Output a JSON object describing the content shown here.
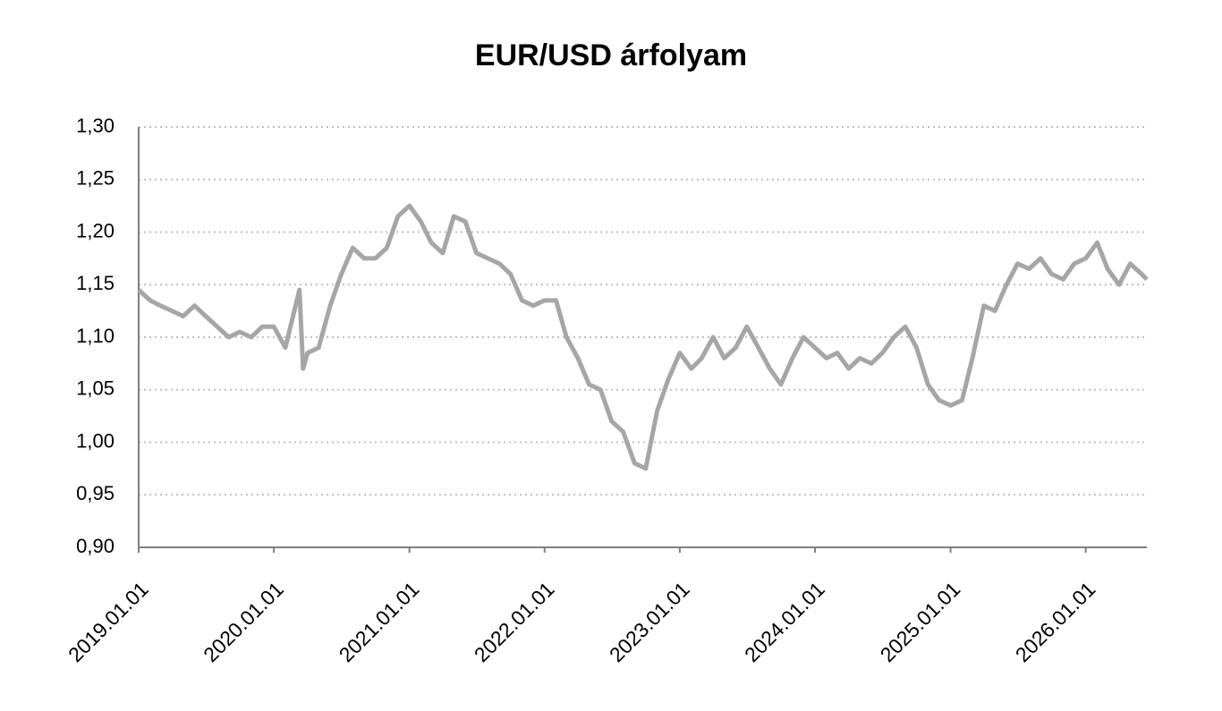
{
  "chart_data": {
    "type": "line",
    "title": "EUR/USD árfolyam",
    "x": [
      "2019.01.01",
      "2019.02.01",
      "2019.03.01",
      "2019.04.01",
      "2019.05.01",
      "2019.06.01",
      "2019.07.01",
      "2019.08.01",
      "2019.09.01",
      "2019.10.01",
      "2019.11.01",
      "2019.12.01",
      "2020.01.01",
      "2020.02.01",
      "2020.03.10",
      "2020.03.20",
      "2020.04.01",
      "2020.05.01",
      "2020.06.01",
      "2020.07.01",
      "2020.08.01",
      "2020.09.01",
      "2020.10.01",
      "2020.11.01",
      "2020.12.01",
      "2021.01.01",
      "2021.02.01",
      "2021.03.01",
      "2021.04.01",
      "2021.05.01",
      "2021.06.01",
      "2021.07.01",
      "2021.08.01",
      "2021.09.01",
      "2021.10.01",
      "2021.11.01",
      "2021.12.01",
      "2022.01.01",
      "2022.02.01",
      "2022.03.01",
      "2022.04.01",
      "2022.05.01",
      "2022.06.01",
      "2022.07.01",
      "2022.08.01",
      "2022.09.01",
      "2022.10.01",
      "2022.11.01",
      "2022.12.01",
      "2023.01.01",
      "2023.02.01",
      "2023.03.01",
      "2023.04.01",
      "2023.05.01",
      "2023.06.01",
      "2023.07.01",
      "2023.08.01",
      "2023.09.01",
      "2023.10.01",
      "2023.11.01",
      "2023.12.01",
      "2024.01.01",
      "2024.02.01",
      "2024.03.01",
      "2024.04.01",
      "2024.05.01",
      "2024.06.01",
      "2024.07.01",
      "2024.08.01",
      "2024.09.01",
      "2024.10.01",
      "2024.11.01",
      "2024.12.01",
      "2025.01.01",
      "2025.02.01",
      "2025.03.01",
      "2025.04.01",
      "2025.05.01",
      "2025.06.01",
      "2025.07.01",
      "2025.08.01",
      "2025.09.01",
      "2025.10.01",
      "2025.11.01",
      "2025.12.01",
      "2026.01.01",
      "2026.02.01",
      "2026.03.01",
      "2026.04.01",
      "2026.05.01",
      "2026.06.01",
      "2026.06.15"
    ],
    "series": [
      {
        "name": "EUR/USD",
        "color": "#a6a6a6",
        "values": [
          1.145,
          1.135,
          1.13,
          1.125,
          1.12,
          1.13,
          1.12,
          1.11,
          1.1,
          1.105,
          1.1,
          1.11,
          1.11,
          1.09,
          1.145,
          1.07,
          1.085,
          1.09,
          1.13,
          1.16,
          1.185,
          1.175,
          1.175,
          1.185,
          1.215,
          1.225,
          1.21,
          1.19,
          1.18,
          1.215,
          1.21,
          1.18,
          1.175,
          1.17,
          1.16,
          1.135,
          1.13,
          1.135,
          1.135,
          1.1,
          1.08,
          1.055,
          1.05,
          1.02,
          1.01,
          0.98,
          0.975,
          1.03,
          1.06,
          1.085,
          1.07,
          1.08,
          1.1,
          1.08,
          1.09,
          1.11,
          1.09,
          1.07,
          1.055,
          1.08,
          1.1,
          1.09,
          1.08,
          1.085,
          1.07,
          1.08,
          1.075,
          1.085,
          1.1,
          1.11,
          1.09,
          1.055,
          1.04,
          1.035,
          1.04,
          1.08,
          1.13,
          1.125,
          1.15,
          1.17,
          1.165,
          1.175,
          1.16,
          1.155,
          1.17,
          1.175,
          1.19,
          1.165,
          1.15,
          1.17,
          1.16,
          1.155
        ]
      }
    ],
    "xlim": [
      "2019.01.01",
      "2026.06.15"
    ],
    "xticks": [
      "2019.01.01",
      "2020.01.01",
      "2021.01.01",
      "2022.01.01",
      "2023.01.01",
      "2024.01.01",
      "2025.01.01",
      "2026.01.01"
    ],
    "ylim": [
      0.9,
      1.3
    ],
    "yticks": [
      {
        "value": 0.9,
        "label": "0,90"
      },
      {
        "value": 0.95,
        "label": "0,95"
      },
      {
        "value": 1.0,
        "label": "1,00"
      },
      {
        "value": 1.05,
        "label": "1,05"
      },
      {
        "value": 1.1,
        "label": "1,10"
      },
      {
        "value": 1.15,
        "label": "1,15"
      },
      {
        "value": 1.2,
        "label": "1,20"
      },
      {
        "value": 1.25,
        "label": "1,25"
      },
      {
        "value": 1.3,
        "label": "1,30"
      }
    ],
    "grid": true
  }
}
